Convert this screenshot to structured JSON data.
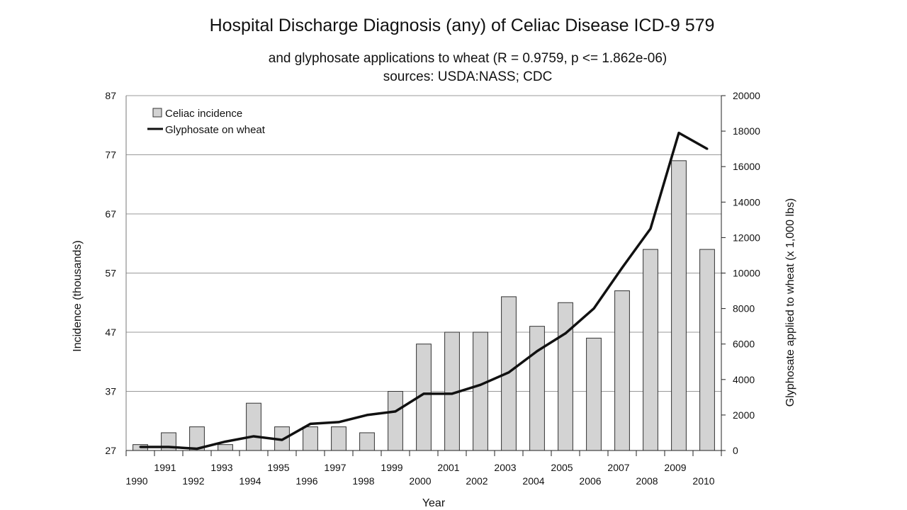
{
  "chart_data": {
    "type": "bar",
    "title": "Hospital Discharge Diagnosis (any) of Celiac Disease ICD-9 579",
    "subtitle": "and glyphosate applications to wheat (R = 0.9759, p <= 1.862e-06)",
    "source": "sources: USDA:NASS; CDC",
    "xlabel": "Year",
    "ylabel": "Incidence (thousands)",
    "y2label": "Glyphosate applied to wheat (x 1,000 lbs)",
    "categories": [
      "1990",
      "1991",
      "1992",
      "1993",
      "1994",
      "1995",
      "1996",
      "1997",
      "1998",
      "1999",
      "2000",
      "2001",
      "2002",
      "2003",
      "2004",
      "2005",
      "2006",
      "2007",
      "2008",
      "2009",
      "2010"
    ],
    "ylim": [
      27,
      87
    ],
    "yticks": [
      27,
      37,
      47,
      57,
      67,
      77,
      87
    ],
    "y2lim": [
      0,
      20000
    ],
    "y2ticks": [
      0,
      2000,
      4000,
      6000,
      8000,
      10000,
      12000,
      14000,
      16000,
      18000,
      20000
    ],
    "grid": true,
    "legend_position": "top-left",
    "series": [
      {
        "name": "Celiac incidence",
        "type": "bar",
        "axis": "left",
        "color": "#d3d3d3",
        "values": [
          28,
          30,
          31,
          28,
          35,
          31,
          31,
          31,
          30,
          37,
          45,
          47,
          47,
          53,
          48,
          52,
          46,
          54,
          61,
          76,
          61
        ]
      },
      {
        "name": "Glyphosate on wheat",
        "type": "line",
        "axis": "right",
        "color": "#111111",
        "values": [
          200,
          200,
          100,
          500,
          800,
          600,
          1500,
          1600,
          2000,
          2200,
          3200,
          3200,
          3700,
          4400,
          5600,
          6600,
          8000,
          10300,
          12500,
          17900,
          17000
        ]
      }
    ]
  }
}
